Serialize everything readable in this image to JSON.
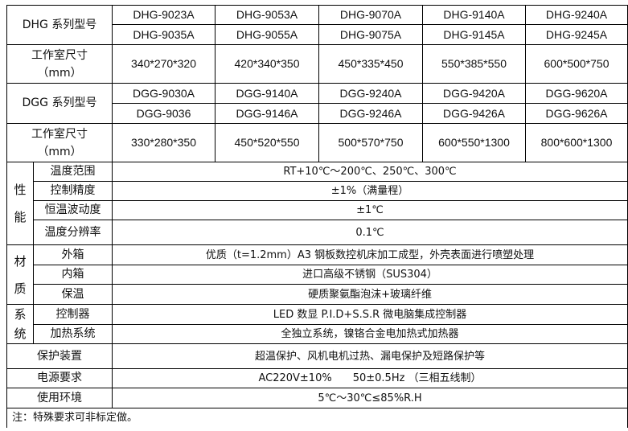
{
  "dhg": {
    "label": "DHG 系列型号",
    "models_row1": [
      "DHG-9023A",
      "DHG-9053A",
      "DHG-9070A",
      "DHG-9140A",
      "DHG-9240A"
    ],
    "models_row2": [
      "DHG-9035A",
      "DHG-9055A",
      "DHG-9075A",
      "DHG-9145A",
      "DHG-9245A"
    ],
    "size_label": "工作室尺寸",
    "size_unit": "（mm）",
    "sizes": [
      "340*270*320",
      "420*340*350",
      "450*335*450",
      "550*385*550",
      "600*500*750"
    ]
  },
  "dgg": {
    "label": "DGG 系列型号",
    "models_row1": [
      "DGG-9030A",
      "DGG-9140A",
      "DGG-9240A",
      "DGG-9420A",
      "DGG-9620A"
    ],
    "models_row2": [
      "DGG-9036",
      "DGG-9146A",
      "DGG-9246A",
      "DGG-9426A",
      "DGG-9626A"
    ],
    "size_label": "工作室尺寸",
    "size_unit": "（mm）",
    "sizes": [
      "330*280*350",
      "450*520*550",
      "500*570*750",
      "600*550*1300",
      "800*600*1300"
    ]
  },
  "performance": {
    "group": [
      "性",
      "能"
    ],
    "rows": [
      {
        "label": "温度范围",
        "value": "RT+10℃～200℃、250℃、300℃"
      },
      {
        "label": "控制精度",
        "value": "±1%（满量程）"
      },
      {
        "label": "恒温波动度",
        "value": "±1℃"
      },
      {
        "label": "温度分辨率",
        "value": "0.1℃"
      }
    ]
  },
  "material": {
    "group": [
      "材",
      "质"
    ],
    "rows": [
      {
        "label": "外箱",
        "value": "优质（t=1.2mm）A3 钢板数控机床加工成型，外壳表面进行喷塑处理"
      },
      {
        "label": "内箱",
        "value": "进口高级不锈钢（SUS304）"
      },
      {
        "label": "保温",
        "value": "硬质聚氨酯泡沫+玻璃纤维"
      }
    ]
  },
  "system": {
    "group": [
      "系",
      "统"
    ],
    "rows": [
      {
        "label": "控制器",
        "value": "LED 数显 P.I.D+S.S.R 微电脑集成控制器"
      },
      {
        "label": "加热系统",
        "value": "全独立系统，镍铬合金电加热式加热器"
      }
    ]
  },
  "other": [
    {
      "label": "保护装置",
      "value": "超温保护、风机电机过热、漏电保护及短路保护等"
    },
    {
      "label": "电源要求",
      "value": "AC220V±10%　　50±0.5Hz （三相五线制）"
    },
    {
      "label": "使用环境",
      "value": "5℃～30℃≤85%R.H"
    }
  ],
  "note": "注：特殊要求可非标定做。"
}
